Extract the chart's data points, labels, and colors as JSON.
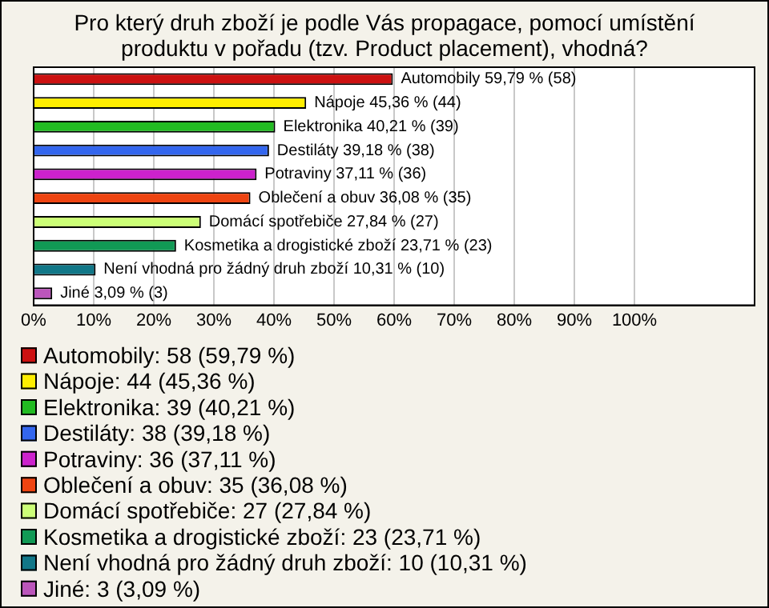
{
  "chart_data": {
    "type": "bar",
    "orientation": "horizontal",
    "stacked": true,
    "title": "Pro který druh zboží je podle Vás propagace, pomocí umístění produktu v pořadu (tzv. Product placement), vhodná?",
    "categories": [
      null,
      null,
      null,
      null,
      null,
      null,
      null,
      null,
      null,
      null
    ],
    "series": [
      {
        "name": "Automobily: 58 (59,79 %)",
        "color": "#cc1111",
        "values": [
          59.79,
          null,
          null,
          null,
          null,
          null,
          null,
          null,
          null,
          null
        ],
        "value_labels": [
          "Automobily 59,79 % (58)",
          null,
          null,
          null,
          null,
          null,
          null,
          null,
          null,
          null
        ]
      },
      {
        "name": "Nápoje: 44 (45,36 %)",
        "color": "#ffee00",
        "values": [
          null,
          45.36,
          null,
          null,
          null,
          null,
          null,
          null,
          null,
          null
        ],
        "value_labels": [
          null,
          "Nápoje 45,36 % (44)",
          null,
          null,
          null,
          null,
          null,
          null,
          null,
          null
        ]
      },
      {
        "name": "Elektronika: 39 (40,21 %)",
        "color": "#22bb22",
        "values": [
          null,
          null,
          40.21,
          null,
          null,
          null,
          null,
          null,
          null,
          null
        ],
        "value_labels": [
          null,
          null,
          "Elektronika 40,21 % (39)",
          null,
          null,
          null,
          null,
          null,
          null,
          null
        ]
      },
      {
        "name": "Destiláty: 38 (39,18 %)",
        "color": "#3366ee",
        "values": [
          null,
          null,
          null,
          39.18,
          null,
          null,
          null,
          null,
          null,
          null
        ],
        "value_labels": [
          null,
          null,
          null,
          "Destiláty 39,18 % (38)",
          null,
          null,
          null,
          null,
          null,
          null
        ]
      },
      {
        "name": "Potraviny: 36 (37,11 %)",
        "color": "#cc22cc",
        "values": [
          null,
          null,
          null,
          null,
          37.11,
          null,
          null,
          null,
          null,
          null
        ],
        "value_labels": [
          null,
          null,
          null,
          null,
          "Potraviny 37,11 % (36)",
          null,
          null,
          null,
          null,
          null
        ]
      },
      {
        "name": "Oblečení a obuv: 35 (36,08 %)",
        "color": "#ee4411",
        "values": [
          null,
          null,
          null,
          null,
          null,
          36.08,
          null,
          null,
          null,
          null
        ],
        "value_labels": [
          null,
          null,
          null,
          null,
          null,
          "Oblečení a obuv 36,08 % (35)",
          null,
          null,
          null,
          null
        ]
      },
      {
        "name": "Domácí spotřebiče: 27 (27,84 %)",
        "color": "#ccff77",
        "values": [
          null,
          null,
          null,
          null,
          null,
          null,
          27.84,
          null,
          null,
          null
        ],
        "value_labels": [
          null,
          null,
          null,
          null,
          null,
          null,
          "Domácí spotřebiče 27,84 % (27)",
          null,
          null,
          null
        ]
      },
      {
        "name": "Kosmetika a drogistické zboží: 23 (23,71 %)",
        "color": "#119955",
        "values": [
          null,
          null,
          null,
          null,
          null,
          null,
          null,
          23.71,
          null,
          null
        ],
        "value_labels": [
          null,
          null,
          null,
          null,
          null,
          null,
          null,
          "Kosmetika a drogistické zboží 23,71 % (23)",
          null,
          null
        ]
      },
      {
        "name": "Není vhodná pro žádný druh zboží: 10 (10,31 %)",
        "color": "#117788",
        "values": [
          null,
          null,
          null,
          null,
          null,
          null,
          null,
          null,
          10.31,
          null
        ],
        "value_labels": [
          null,
          null,
          null,
          null,
          null,
          null,
          null,
          null,
          "Není vhodná pro žádný druh zboží 10,31 % (10)",
          null
        ]
      },
      {
        "name": "Jiné: 3 (3,09 %)",
        "color": "#bb55bb",
        "values": [
          null,
          null,
          null,
          null,
          null,
          null,
          null,
          null,
          null,
          3.09
        ],
        "value_labels": [
          null,
          null,
          null,
          null,
          null,
          null,
          null,
          null,
          null,
          "Jiné 3,09 % (3)"
        ]
      }
    ],
    "xlim": [
      0,
      120
    ],
    "xticks": [
      {
        "value": 0,
        "label": "0%"
      },
      {
        "value": 10,
        "label": "10%"
      },
      {
        "value": 20,
        "label": "20%"
      },
      {
        "value": 30,
        "label": "30%"
      },
      {
        "value": 40,
        "label": "40%"
      },
      {
        "value": 50,
        "label": "50%"
      },
      {
        "value": 60,
        "label": "60%"
      },
      {
        "value": 70,
        "label": "70%"
      },
      {
        "value": 80,
        "label": "80%"
      },
      {
        "value": 90,
        "label": "90%"
      },
      {
        "value": 100,
        "label": "100%"
      }
    ],
    "grid": "x",
    "legend": "bottom",
    "tick_labels": "x"
  }
}
